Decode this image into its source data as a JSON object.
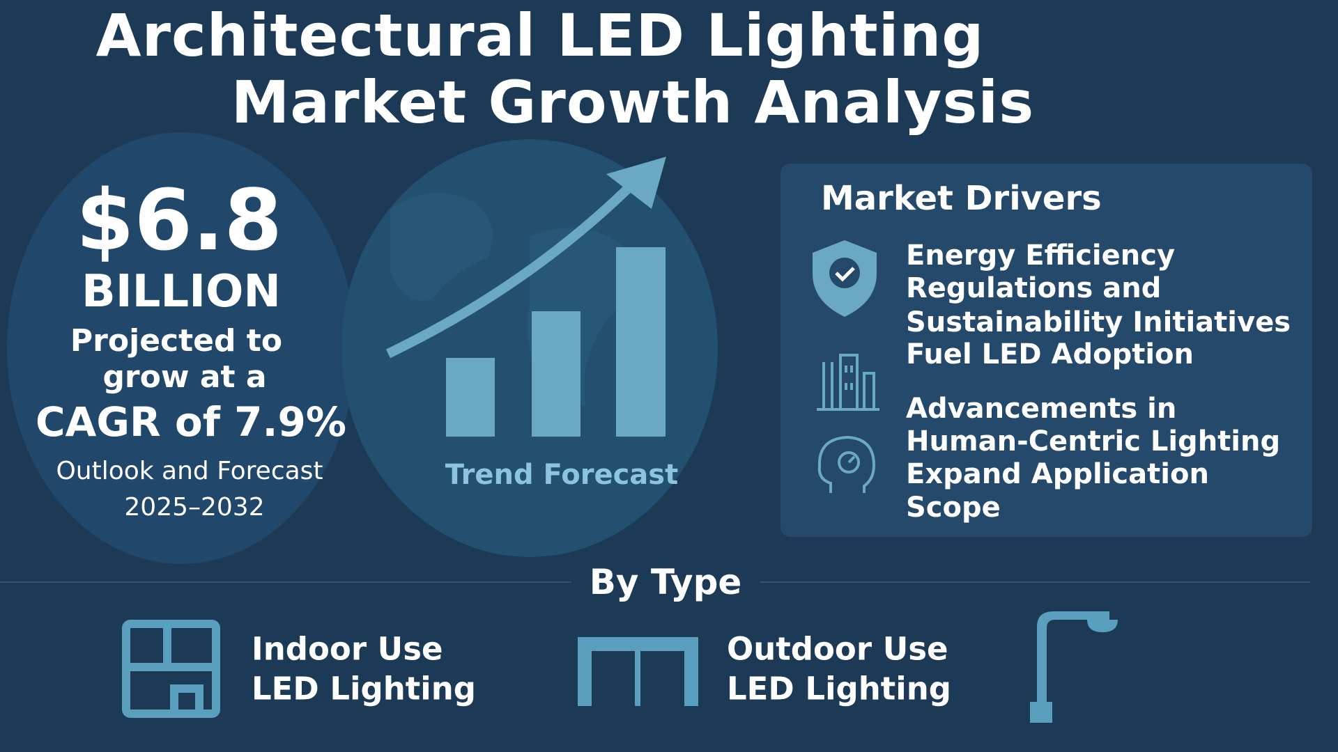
{
  "header": {
    "title_lines": [
      "Architectural LED Lighting",
      "Market Growth Analysis"
    ]
  },
  "highlight": {
    "value": "$6.8",
    "unit": "BILLION",
    "lines": [
      "Projected to",
      "grow at a"
    ],
    "cagr": "CAGR of 7.9%",
    "outlook": [
      "Outlook and Forecast",
      "2025–2032"
    ]
  },
  "trend": {
    "label": "Trend Forecast"
  },
  "drivers": {
    "title": "Market Drivers",
    "items": [
      {
        "lines": [
          "Energy Efficiency",
          "Regulations and",
          "Sustainability Initiatives",
          "Fuel LED Adoption"
        ]
      },
      {
        "lines": [
          "Advancements in",
          "Human-Centric Lighting",
          "Expand Application",
          "Scope"
        ]
      }
    ]
  },
  "by_type": {
    "title": "By Type",
    "items": [
      {
        "lines": [
          "Indoor Use",
          "LED Lighting"
        ]
      },
      {
        "lines": [
          "Outdoor Use",
          "LED Lighting"
        ]
      }
    ]
  }
}
